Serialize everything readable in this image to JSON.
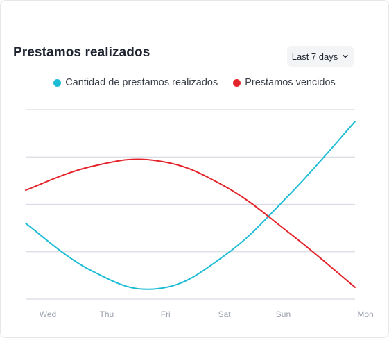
{
  "header": {
    "title": "Prestamos realizados",
    "range_label": "Last 7 days"
  },
  "colors": {
    "series_cantidad": "#1cbcd6",
    "series_vencidos": "#e3242b",
    "grid": "#d8dbe3",
    "tick_text": "#9aa0ad"
  },
  "chart_data": {
    "type": "line",
    "title": "Prestamos realizados",
    "xlabel": "",
    "ylabel": "",
    "categories": [
      "Wed",
      "Thu",
      "Fri",
      "Sat",
      "Sun",
      "Mon"
    ],
    "ylim": [
      0,
      4
    ],
    "grid": true,
    "y_ticks_labeled": false,
    "legend_position": "top-center",
    "series": [
      {
        "name": "Cantidad de prestamos realizados",
        "color": "#1cbcd6",
        "values": [
          1.6,
          0.6,
          0.22,
          0.9,
          2.2,
          3.75
        ]
      },
      {
        "name": "Prestamos vencidos",
        "color": "#e3242b",
        "values": [
          2.3,
          2.8,
          2.92,
          2.4,
          1.4,
          0.25
        ]
      }
    ]
  }
}
